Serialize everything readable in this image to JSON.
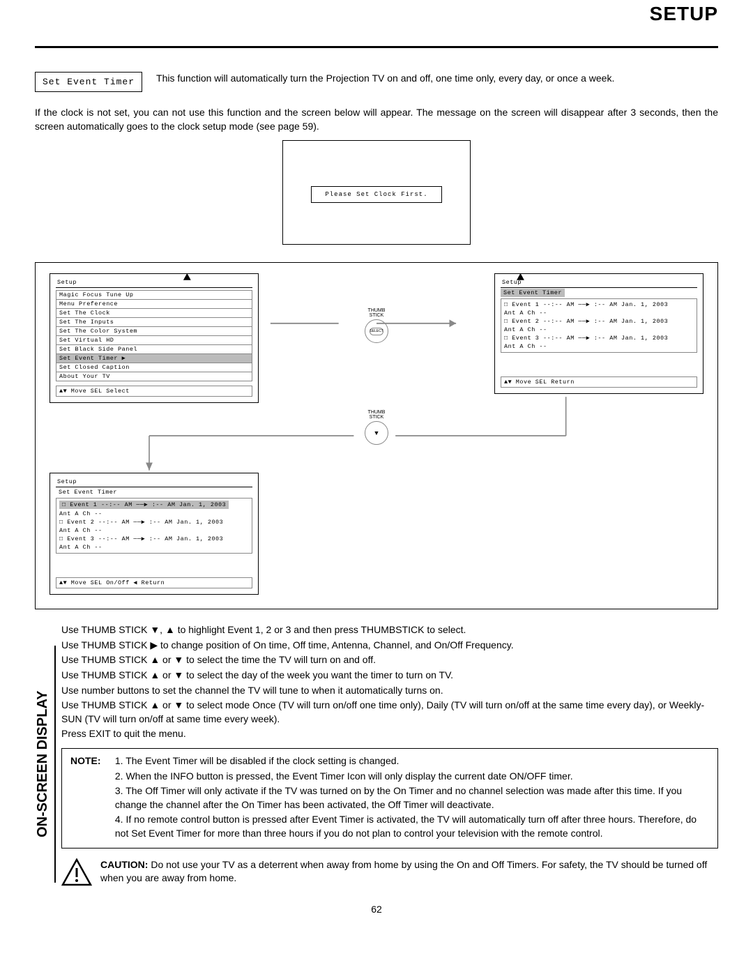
{
  "header": {
    "title": "SETUP"
  },
  "labelBox": "Set Event Timer",
  "introText": "This function will automatically turn the Projection TV on and off, one time only, every day, or once a week.",
  "clockNote": "If the clock is not set, you can not use this function and the screen below will appear.  The message on the screen will disappear after 3 seconds, then the screen automatically goes to the clock setup mode (see page 59).",
  "clockScreenText": "Please Set Clock First.",
  "menu1": {
    "title": "Setup",
    "items": [
      "Magic Focus Tune Up",
      "Menu Preference",
      "Set The Clock",
      "Set The Inputs",
      "Set The Color System",
      "Set Virtual HD",
      "Set Black Side Panel",
      "Set Event Timer",
      "Set Closed Caption",
      "About Your TV"
    ],
    "selectedIndex": 7,
    "footer": "▲▼ Move  SEL Select"
  },
  "thumbLabel": "THUMB\nSTICK",
  "thumbInner": "SELECT",
  "menu2": {
    "title": "Setup",
    "subtitle": "Set Event Timer",
    "events": [
      {
        "line1": "□ Event 1 --:-- AM  ──▶ :-- AM Jan. 1, 2003",
        "line2": "  Ant A   Ch --"
      },
      {
        "line1": "□ Event 2 --:-- AM  ──▶ :-- AM Jan. 1, 2003",
        "line2": "  Ant A   Ch --"
      },
      {
        "line1": "□ Event 3 --:-- AM  ──▶ :-- AM Jan. 1, 2003",
        "line2": "  Ant A   Ch --"
      }
    ],
    "footer": "▲▼ Move  SEL Return"
  },
  "menu3": {
    "title": "Setup",
    "subtitle": "Set Event Timer",
    "events": [
      {
        "line1": "□ Event 1 --:-- AM  ──▶ :-- AM Jan. 1, 2003",
        "line2": "  Ant A   Ch --",
        "sel": true
      },
      {
        "line1": "□ Event 2 --:-- AM  ──▶ :-- AM Jan. 1, 2003",
        "line2": "  Ant A   Ch --"
      },
      {
        "line1": "□ Event 3 --:-- AM  ──▶ :-- AM Jan. 1, 2003",
        "line2": "  Ant A   Ch --"
      }
    ],
    "footer": "▲▼ Move  SEL On/Off  ◀ Return"
  },
  "sideLabel": "ON-SCREEN DISPLAY",
  "instructions": [
    "Use THUMB STICK ▼, ▲ to highlight Event 1, 2 or 3 and then press THUMBSTICK to select.",
    "Use THUMB STICK ▶ to change position of On time, Off time, Antenna, Channel, and On/Off Frequency.",
    "Use THUMB STICK ▲ or ▼ to select the time the TV will turn on and off.",
    "Use THUMB STICK ▲ or ▼ to select the day of the week you want the timer to turn on TV.",
    "Use number buttons to set the channel the TV will tune to when it automatically turns on.",
    "Use THUMB STICK ▲ or ▼ to select mode Once (TV will turn on/off one time only), Daily (TV will turn on/off at the same time every day), or Weekly-SUN (TV will turn on/off at same time every week).",
    "Press EXIT to quit the menu."
  ],
  "note": {
    "label": "NOTE:",
    "items": [
      "1. The Event Timer will be disabled if the clock setting is changed.",
      "2. When the INFO button is pressed, the Event Timer Icon will only display the current date ON/OFF timer.",
      "3. The Off Timer will only activate if the TV was turned on by the On Timer and no channel selection was made after this time.  If you change the channel after the On Timer has been activated, the Off Timer will deactivate.",
      "4. If no remote control button is pressed after Event Timer is activated, the TV will automatically turn off after three hours. Therefore, do not Set Event Timer for more than three hours if you do not plan to control your television with the remote control."
    ]
  },
  "caution": {
    "label": "CAUTION:",
    "text": "Do not use your TV as a deterrent when away from home by using the On and Off Timers.  For safety, the TV should be turned off when you are away from home."
  },
  "pageNumber": "62",
  "colors": {
    "text": "#000000",
    "bg": "#ffffff",
    "sel": "#bbbbbb",
    "border": "#888888"
  }
}
